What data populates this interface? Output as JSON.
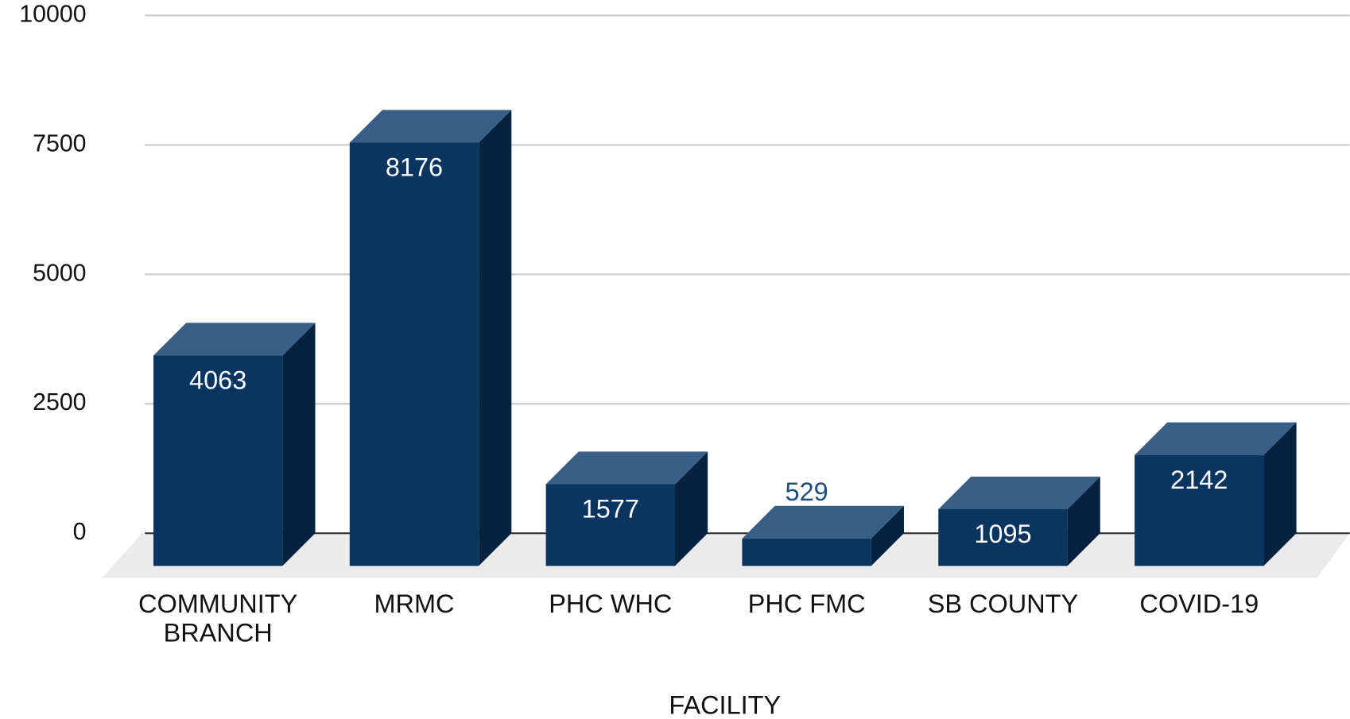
{
  "chart_data": {
    "type": "bar3d",
    "x_label": "FACILITY",
    "categories": [
      "COMMUNITY BRANCH",
      "MRMC",
      "PHC WHC",
      "PHC FMC",
      "SB COUNTY",
      "COVID-19"
    ],
    "values": [
      4063,
      8176,
      1577,
      529,
      1095,
      2142
    ],
    "color": "#0b3561",
    "ylim": [
      0,
      10000
    ],
    "yticks": [
      0,
      2500,
      5000,
      7500,
      10000
    ],
    "grid": true
  }
}
